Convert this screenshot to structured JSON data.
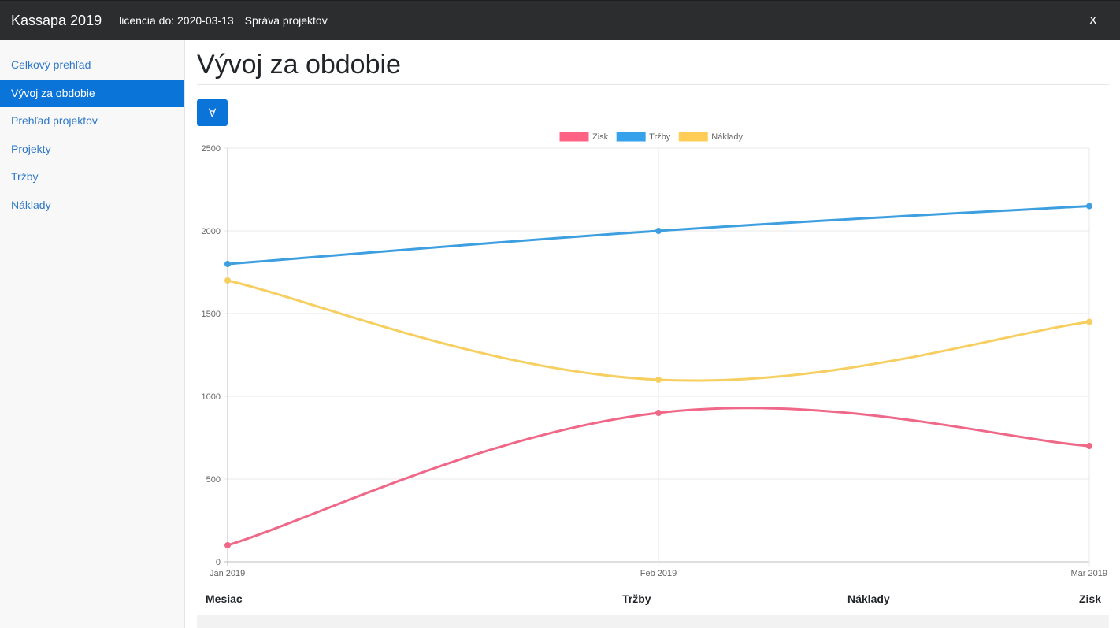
{
  "header": {
    "brand": "Kassapa 2019",
    "license": "licencia do: 2020-03-13",
    "section": "Správa projektov",
    "close_label": "x"
  },
  "sidebar": {
    "items": [
      {
        "label": "Celkový prehľad"
      },
      {
        "label": "Vývoj za obdobie"
      },
      {
        "label": "Prehľad projektov"
      },
      {
        "label": "Projekty"
      },
      {
        "label": "Tržby"
      },
      {
        "label": "Náklady"
      }
    ],
    "active_index": 1
  },
  "main": {
    "title": "Vývoj za obdobie",
    "toggle_label": "∀"
  },
  "chart_data": {
    "type": "line",
    "categories": [
      "Jan 2019",
      "Feb 2019",
      "Mar 2019"
    ],
    "series": [
      {
        "name": "Zisk",
        "values": [
          100,
          900,
          700
        ],
        "color": "#ef6888"
      },
      {
        "name": "Tržby",
        "values": [
          1800,
          2000,
          2150
        ],
        "color": "#3d9fe0"
      },
      {
        "name": "Náklady",
        "values": [
          1700,
          1100,
          1450
        ],
        "color": "#f6cf60"
      }
    ],
    "ylim": [
      0,
      2500
    ],
    "yticks": [
      "0",
      "500",
      "1000",
      "1500",
      "2000",
      "2500"
    ],
    "grid": true,
    "legend": "top-center",
    "legend_swatch": {
      "Zisk": "#ff6384",
      "Tržby": "#36a2eb",
      "Náklady": "#ffcd56"
    }
  },
  "table": {
    "columns": [
      "Mesiac",
      "Tržby",
      "Náklady",
      "Zisk"
    ]
  }
}
